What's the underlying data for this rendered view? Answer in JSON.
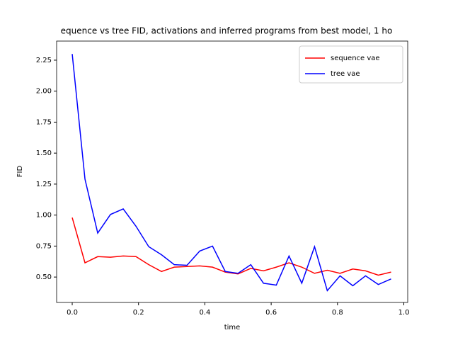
{
  "chart_data": {
    "type": "line",
    "title": "equence vs tree FID, activations and inferred programs from best model, 1 ho",
    "x_label": "time",
    "y_label": "FID",
    "x": [
      0,
      0.0385,
      0.0769,
      0.1154,
      0.1538,
      0.1923,
      0.2308,
      0.2692,
      0.3077,
      0.3462,
      0.3846,
      0.4231,
      0.4615,
      0.5,
      0.5385,
      0.5769,
      0.6154,
      0.6538,
      0.6923,
      0.7308,
      0.7692,
      0.8077,
      0.8462,
      0.8846,
      0.9231,
      0.9615
    ],
    "series": [
      {
        "name": "sequence vae",
        "color": "#ff0000",
        "values": [
          0.98,
          0.615,
          0.665,
          0.66,
          0.67,
          0.665,
          0.6,
          0.545,
          0.58,
          0.585,
          0.59,
          0.58,
          0.54,
          0.525,
          0.57,
          0.55,
          0.58,
          0.615,
          0.58,
          0.53,
          0.555,
          0.53,
          0.565,
          0.55,
          0.515,
          0.54
        ]
      },
      {
        "name": "tree vae",
        "color": "#0000ff",
        "values": [
          2.3,
          1.29,
          0.855,
          1.005,
          1.05,
          0.91,
          0.745,
          0.68,
          0.6,
          0.595,
          0.71,
          0.75,
          0.545,
          0.53,
          0.6,
          0.45,
          0.435,
          0.67,
          0.45,
          0.745,
          0.39,
          0.51,
          0.43,
          0.51,
          0.44,
          0.485
        ]
      }
    ],
    "xlim": [
      -0.047,
      1.0117
    ],
    "ylim": [
      0.295,
      2.404
    ],
    "xticks": [
      {
        "value": 0,
        "label": "0.0"
      },
      0.2,
      0.4,
      0.6,
      0.8,
      {
        "value": 1,
        "label": "1.0"
      }
    ],
    "yticks": [
      {
        "value": 0.5,
        "label": "0.50"
      },
      0.75,
      {
        "value": 1,
        "label": "1.00"
      },
      1.25,
      {
        "value": 1.5,
        "label": "1.50"
      },
      1.75,
      {
        "value": 2,
        "label": "2.00"
      },
      2.25
    ],
    "grid": false,
    "legend": "upper right"
  }
}
